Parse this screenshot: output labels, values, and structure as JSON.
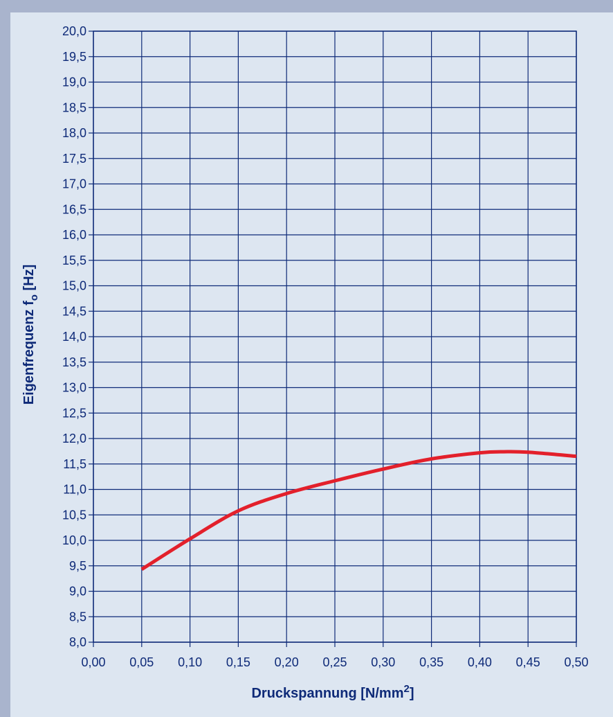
{
  "chart_data": {
    "type": "line",
    "title": "",
    "xlabel": "Druckspannung [N/mm2]",
    "xlabel_parts": {
      "main": "Druckspannung [N/mm",
      "sup": "2",
      "tail": "]"
    },
    "ylabel": "Eigenfrequenz fo [Hz]",
    "ylabel_parts": {
      "main": "Eigenfrequenz f",
      "sub": "o",
      "tail": " [Hz]"
    },
    "xlim": [
      0.0,
      0.5
    ],
    "ylim": [
      8.0,
      20.0
    ],
    "x_ticks": [
      0.0,
      0.05,
      0.1,
      0.15,
      0.2,
      0.25,
      0.3,
      0.35,
      0.4,
      0.45,
      0.5
    ],
    "x_tick_labels": [
      "0,00",
      "0,05",
      "0,10",
      "0,15",
      "0,20",
      "0,25",
      "0,30",
      "0,35",
      "0,40",
      "0,45",
      "0,50"
    ],
    "y_ticks": [
      8.0,
      8.5,
      9.0,
      9.5,
      10.0,
      10.5,
      11.0,
      11.5,
      12.0,
      12.5,
      13.0,
      13.5,
      14.0,
      14.5,
      15.0,
      15.5,
      16.0,
      16.5,
      17.0,
      17.5,
      18.0,
      18.5,
      19.0,
      19.5,
      20.0
    ],
    "y_tick_labels": [
      "8,0",
      "8,5",
      "9,0",
      "9,5",
      "10,0",
      "10,5",
      "11,0",
      "11,5",
      "12,0",
      "12,5",
      "13,0",
      "13,5",
      "14,0",
      "14,5",
      "15,0",
      "15,5",
      "16,0",
      "16,5",
      "17,0",
      "17,5",
      "18,0",
      "18,5",
      "19,0",
      "19,5",
      "20,0"
    ],
    "grid": true,
    "series": [
      {
        "color": "#e3202b",
        "x": [
          0.05,
          0.1,
          0.15,
          0.2,
          0.25,
          0.3,
          0.35,
          0.4,
          0.425,
          0.45,
          0.5
        ],
        "y": [
          9.43,
          10.03,
          10.58,
          10.92,
          11.17,
          11.4,
          11.6,
          11.72,
          11.74,
          11.73,
          11.65
        ]
      }
    ],
    "colors": {
      "background": "#a9b4cd",
      "plot_area": "#dde6f1",
      "axis_and_grid": "#0e2a78",
      "curve": "#e3202b"
    }
  }
}
